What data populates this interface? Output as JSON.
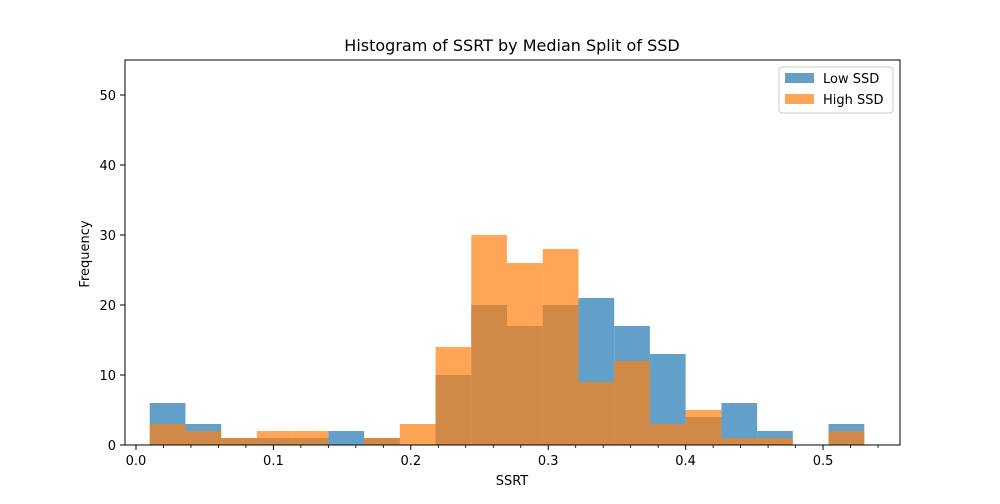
{
  "chart_data": {
    "type": "bar",
    "title": "Histogram of SSRT by Median Split of SSD",
    "xlabel": "SSRT",
    "ylabel": "Frequency",
    "xlim": [
      -0.008,
      0.556
    ],
    "ylim": [
      0,
      55
    ],
    "bin_edges": [
      0.01,
      0.036,
      0.062,
      0.088,
      0.114,
      0.14,
      0.166,
      0.192,
      0.218,
      0.244,
      0.27,
      0.296,
      0.322,
      0.348,
      0.374,
      0.4,
      0.426,
      0.452,
      0.478,
      0.504,
      0.53
    ],
    "x_ticks": [
      0.0,
      0.1,
      0.2,
      0.3,
      0.4,
      0.5
    ],
    "x_tick_labels": [
      "0.0",
      "0.1",
      "0.2",
      "0.3",
      "0.4",
      "0.5"
    ],
    "y_ticks": [
      0,
      10,
      20,
      30,
      40,
      50
    ],
    "y_tick_labels": [
      "0",
      "10",
      "20",
      "30",
      "40",
      "50"
    ],
    "grid": false,
    "legend": "top-right",
    "series": [
      {
        "name": "Low SSD",
        "color": "#1f77b4",
        "opacity": 0.7,
        "values": [
          6,
          3,
          1,
          1,
          1,
          2,
          1,
          0,
          10,
          20,
          17,
          20,
          21,
          17,
          13,
          4,
          6,
          2,
          0,
          3
        ]
      },
      {
        "name": "High SSD",
        "color": "#ff7f0e",
        "opacity": 0.7,
        "values": [
          3,
          2,
          1,
          2,
          2,
          0,
          1,
          3,
          14,
          30,
          26,
          28,
          9,
          12,
          3,
          5,
          1,
          1,
          0,
          2
        ]
      }
    ]
  }
}
